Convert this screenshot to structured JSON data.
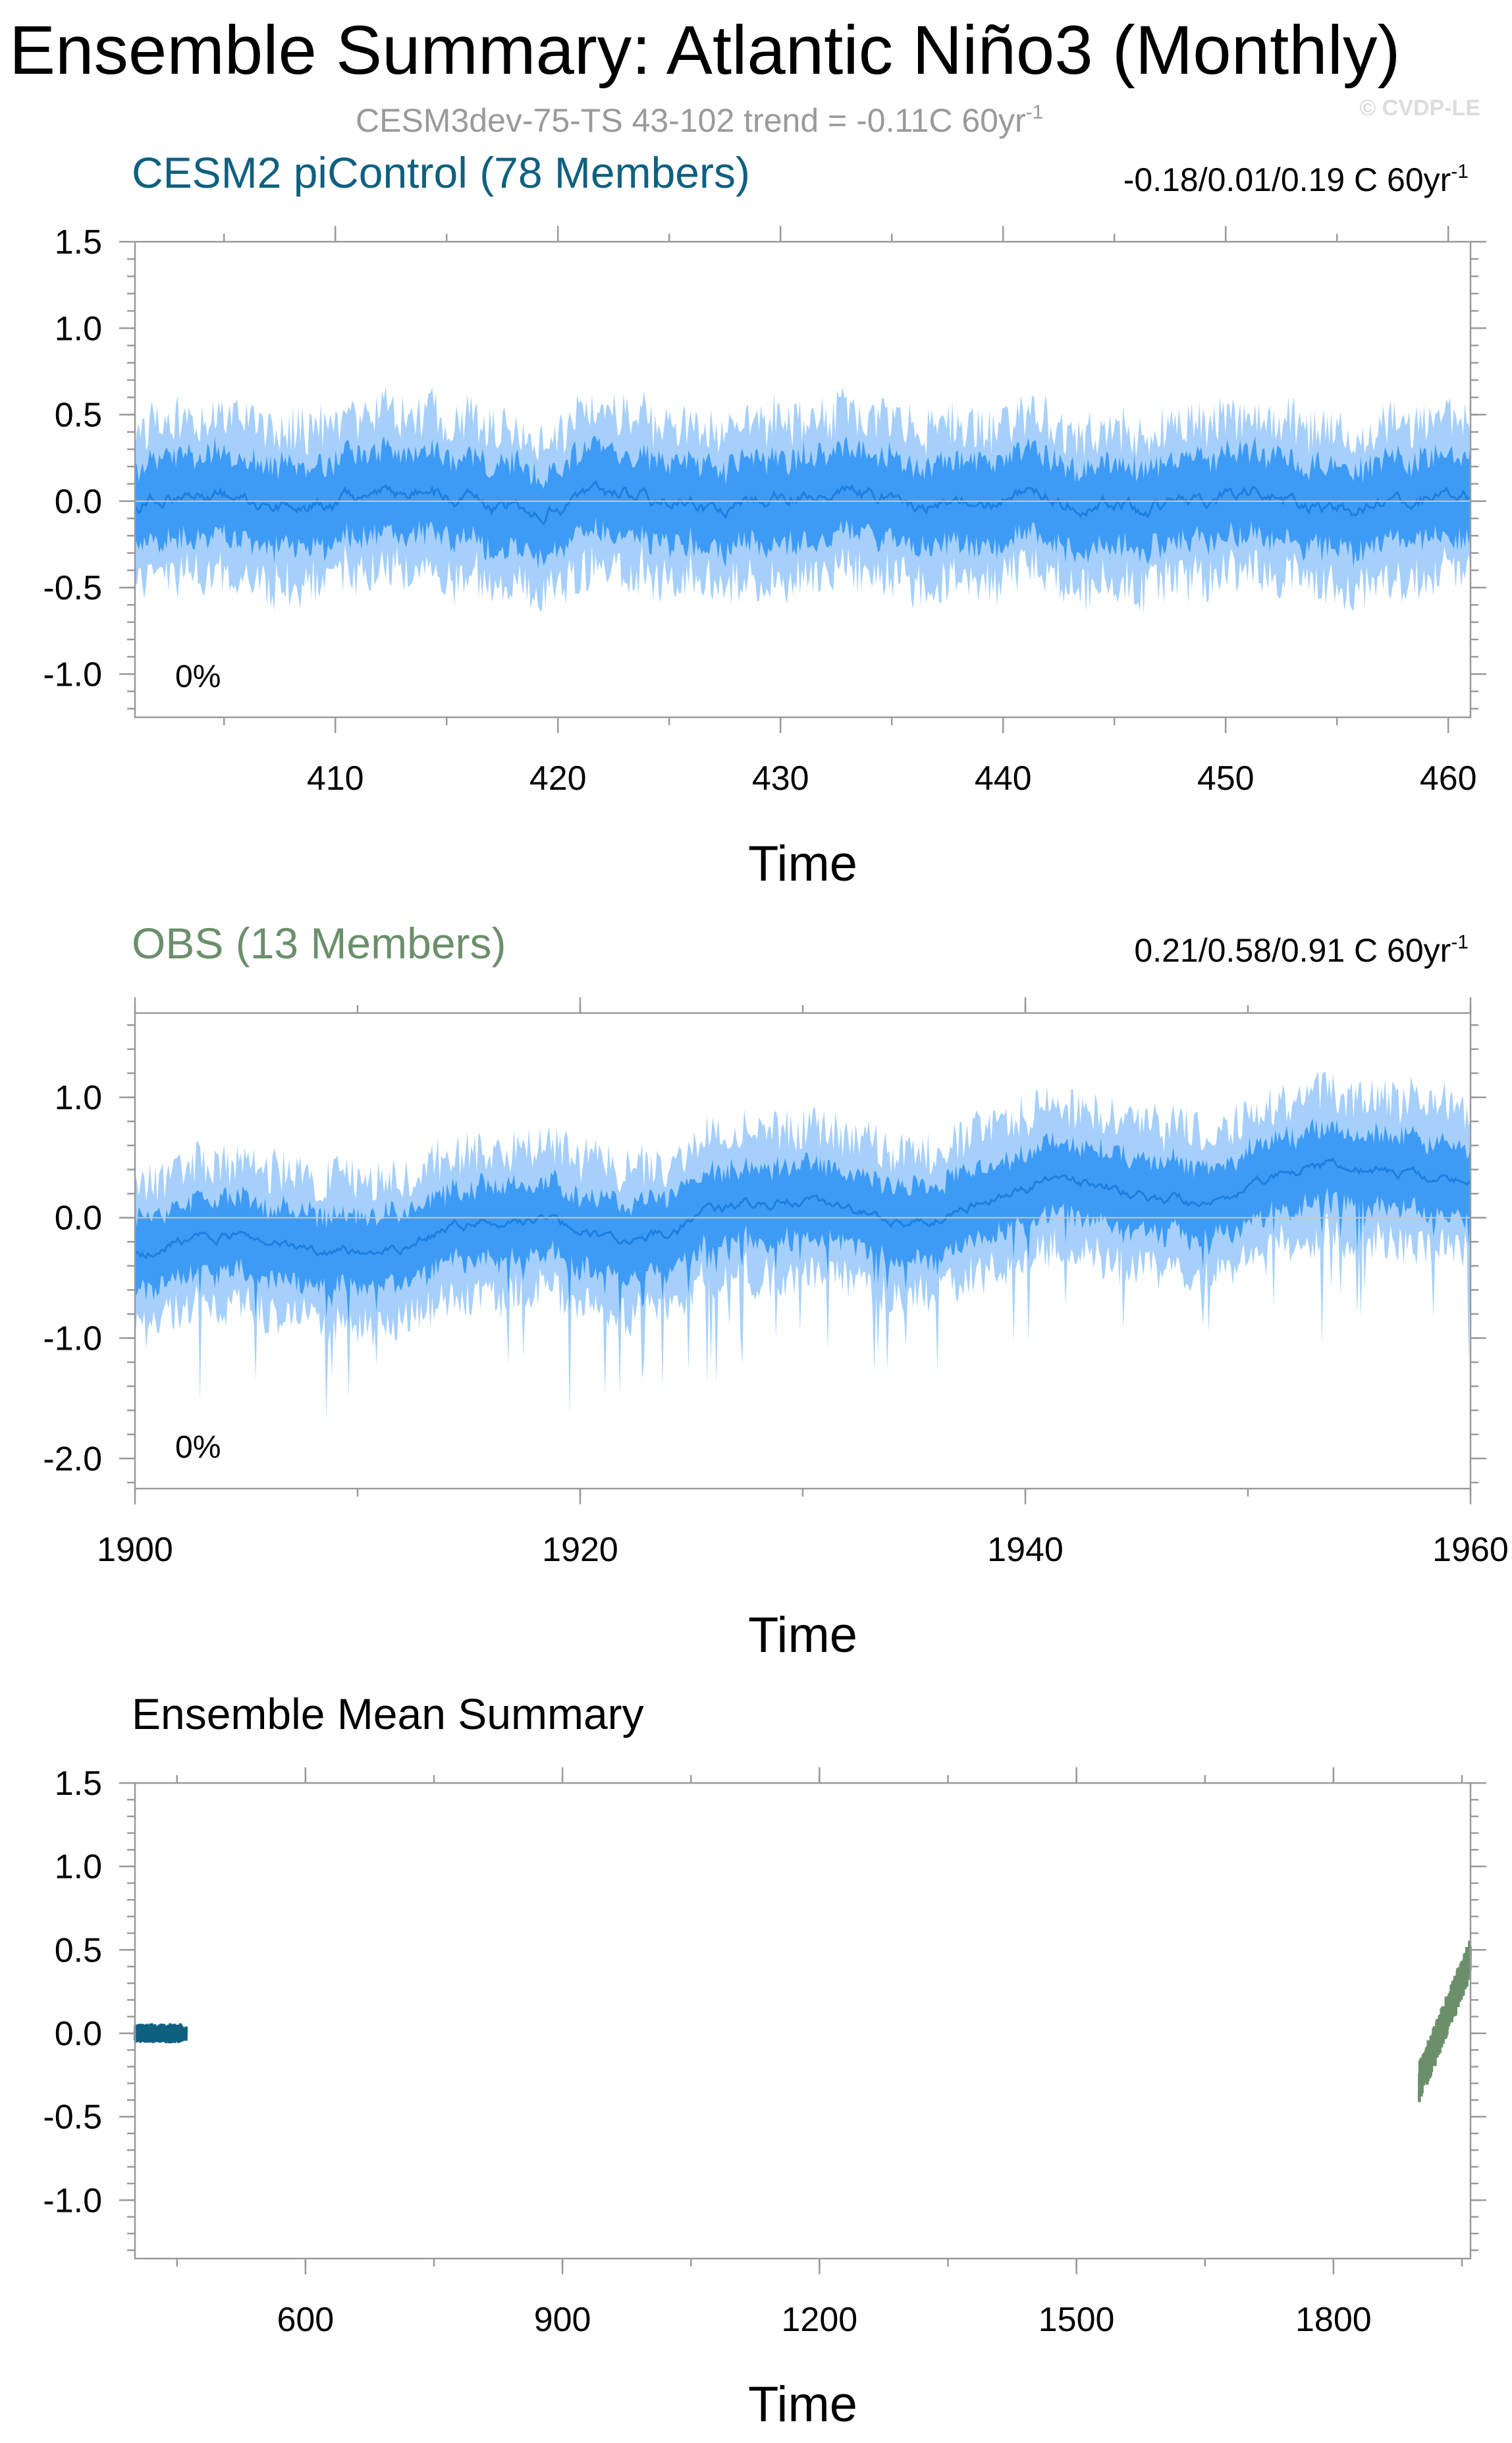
{
  "figure": {
    "title": "Ensemble Summary: Atlantic Niño3 (Monthly)",
    "subtitle_main": "CESM3dev-75-TS 43-102 trend = -0.11C 60yr",
    "subtitle_sup": "-1",
    "watermark": "© CVDP-LE",
    "colors": {
      "band_outer": "#a6d0fb",
      "band_inner": "#3d9bf5",
      "mean_line": "#1c7fe0",
      "cesm": "#0f6080",
      "obs": "#6b8f6b"
    }
  },
  "chart_data": [
    {
      "type": "area",
      "name": "cesm2-picontrol",
      "title": "CESM2 piControl (78 Members)",
      "title_color": "#0f6080",
      "range_main": "-0.18/0.01/0.19 C 60yr",
      "range_sup": "-1",
      "annotation": "0%",
      "xlabel": "Time",
      "ylabel": "",
      "xlim": [
        401,
        461
      ],
      "ylim": [
        -1.25,
        1.5
      ],
      "x_ticks": [
        410,
        420,
        430,
        440,
        450,
        460
      ],
      "y_ticks": [
        -1.0,
        -0.5,
        0.0,
        0.5,
        1.0,
        1.5
      ],
      "y_tick_labels": [
        "-1.0",
        "-0.5",
        "0.0",
        "0.5",
        "1.0",
        "1.5"
      ],
      "grid": false,
      "series": [
        {
          "name": "",
          "kind": "outer-band",
          "lower": -0.5,
          "upper": 0.5
        },
        {
          "name": "",
          "kind": "inner-band",
          "lower": -0.25,
          "upper": 0.25
        },
        {
          "name": "",
          "kind": "ensemble-mean",
          "values_range": [
            -0.1,
            0.1
          ]
        }
      ]
    },
    {
      "type": "area",
      "name": "obs",
      "title": "OBS (13 Members)",
      "title_color": "#6b8f6b",
      "range_main": "0.21/0.58/0.91 C 60yr",
      "range_sup": "-1",
      "annotation": "0%",
      "xlabel": "Time",
      "ylabel": "",
      "xlim": [
        1900,
        1960
      ],
      "ylim": [
        -2.25,
        1.7
      ],
      "x_ticks": [
        1900,
        1920,
        1940,
        1960
      ],
      "y_ticks": [
        -2.0,
        -1.0,
        0.0,
        1.0
      ],
      "y_tick_labels": [
        "-2.0",
        "-1.0",
        "0.0",
        "1.0"
      ],
      "grid": false,
      "series": [
        {
          "name": "",
          "kind": "outer-band",
          "start_mean": -0.3,
          "end_mean": 0.4
        },
        {
          "name": "",
          "kind": "inner-band",
          "start_mean": -0.3,
          "end_mean": 0.4
        },
        {
          "name": "",
          "kind": "ensemble-mean",
          "start": -0.25,
          "end": 0.3
        }
      ]
    },
    {
      "type": "line",
      "name": "ensemble-mean-summary",
      "title": "Ensemble Mean Summary",
      "title_color": "#000000",
      "xlabel": "Time",
      "ylabel": "",
      "xlim": [
        401,
        1960
      ],
      "ylim": [
        -1.35,
        1.5
      ],
      "x_ticks": [
        600,
        900,
        1200,
        1500,
        1800
      ],
      "y_ticks": [
        -1.0,
        -0.5,
        0.0,
        0.5,
        1.0,
        1.5
      ],
      "y_tick_labels": [
        "-1.0",
        "-0.5",
        "0.0",
        "0.5",
        "1.0",
        "1.5"
      ],
      "grid": false,
      "series": [
        {
          "name": "",
          "color": "#0f6080",
          "x_range": [
            401,
            461
          ],
          "values_range": [
            -0.1,
            0.1
          ]
        },
        {
          "name": "",
          "color": "#6b8f6b",
          "x_range": [
            1900,
            1960
          ],
          "start": -0.3,
          "end": 0.45
        }
      ]
    }
  ]
}
